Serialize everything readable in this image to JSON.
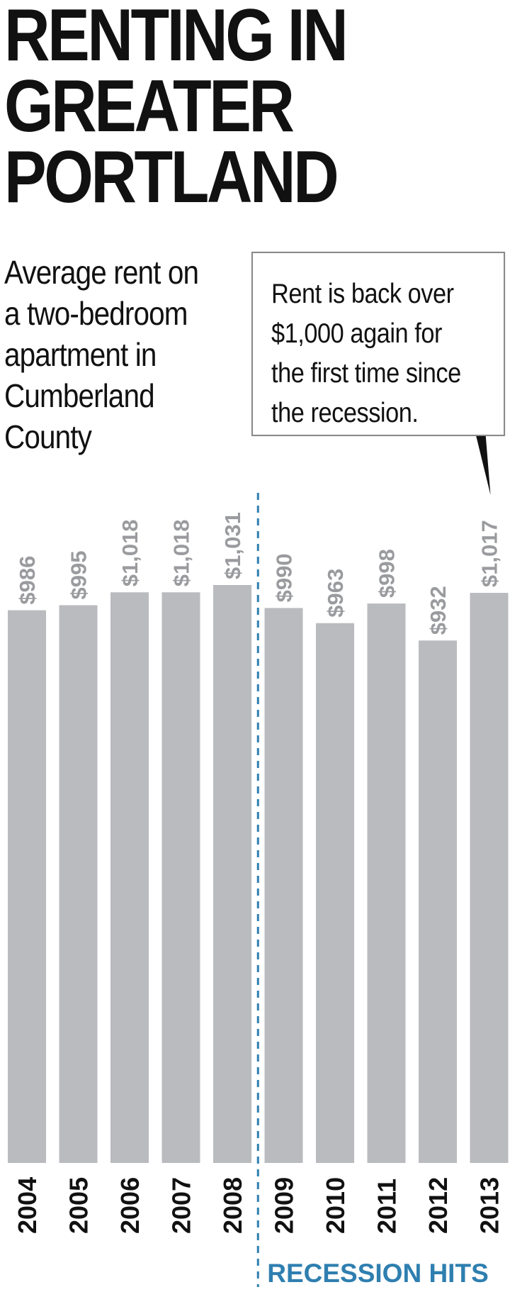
{
  "title_lines": [
    "RENTING IN",
    "GREATER",
    "PORTLAND"
  ],
  "subtitle_lines": [
    "Average rent on",
    "a two-bedroom",
    "apartment in",
    "Cumberland",
    "County"
  ],
  "callout_lines": [
    "Rent is back over",
    "$1,000 again for",
    "the first time since",
    "the recession."
  ],
  "chart_data": {
    "type": "bar",
    "title": "RENTING IN GREATER PORTLAND",
    "subtitle": "Average rent on a two-bedroom apartment in Cumberland County",
    "categories": [
      "2004",
      "2005",
      "2006",
      "2007",
      "2008",
      "2009",
      "2010",
      "2011",
      "2012",
      "2013"
    ],
    "values": [
      986,
      995,
      1018,
      1018,
      1031,
      990,
      963,
      998,
      932,
      1017
    ],
    "value_labels": [
      "$986",
      "$995",
      "$1,018",
      "$1,018",
      "$1,031",
      "$990",
      "$963",
      "$998",
      "$932",
      "$1,017"
    ],
    "bar_color": "#babbbe",
    "annotation": {
      "text": "Rent is back over $1,000 again for the first time since the recession.",
      "target": "2013"
    },
    "marker": {
      "label": "RECESSION HITS",
      "between": [
        "2008",
        "2009"
      ],
      "color": "#2f7fb0"
    },
    "ylim": [
      0,
      1031
    ],
    "grid": false
  }
}
